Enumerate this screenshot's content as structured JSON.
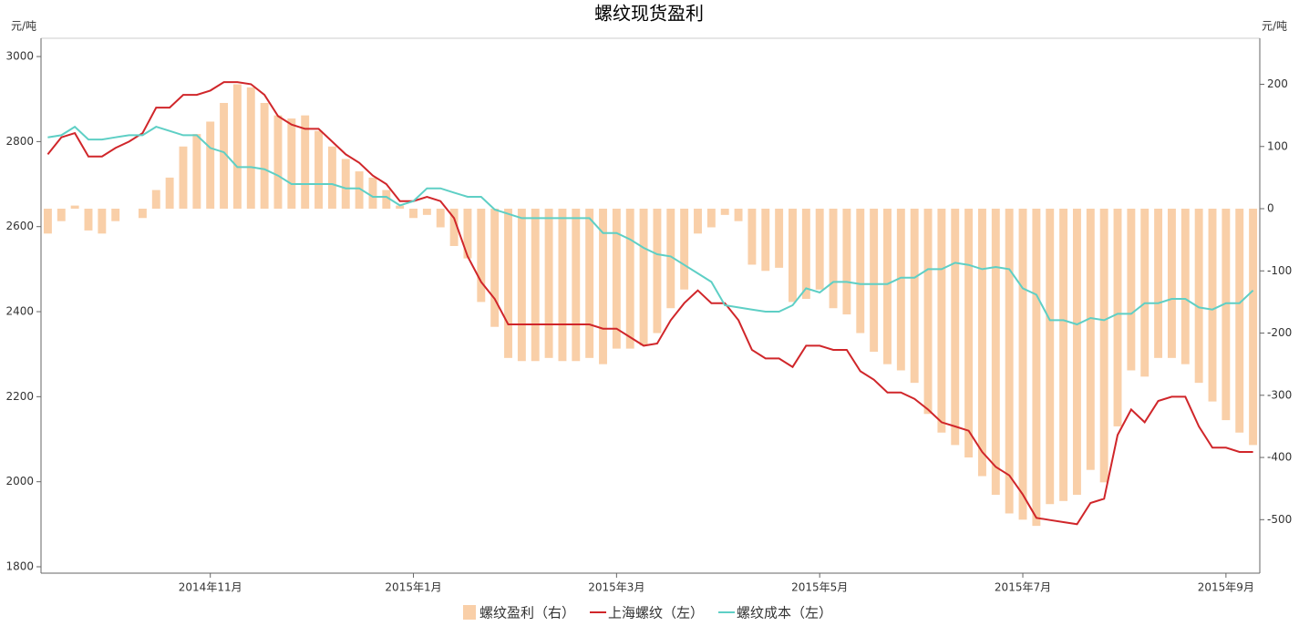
{
  "chart_data": {
    "type": "combo",
    "title": "螺纹现货盈利",
    "ylabel": "元/吨",
    "y2label": "元/吨",
    "categories": [
      null,
      null,
      null,
      null,
      null,
      null,
      null,
      null,
      null,
      null,
      null,
      null,
      "2014年11月",
      null,
      null,
      null,
      null,
      null,
      null,
      null,
      null,
      null,
      null,
      null,
      null,
      null,
      null,
      "2015年1月",
      null,
      null,
      null,
      null,
      null,
      null,
      null,
      null,
      null,
      null,
      null,
      null,
      null,
      null,
      "2015年3月",
      null,
      null,
      null,
      null,
      null,
      null,
      null,
      null,
      null,
      null,
      null,
      null,
      null,
      null,
      "2015年5月",
      null,
      null,
      null,
      null,
      null,
      null,
      null,
      null,
      null,
      null,
      null,
      null,
      null,
      null,
      "2015年7月",
      null,
      null,
      null,
      null,
      null,
      null,
      null,
      null,
      null,
      null,
      null,
      null,
      null,
      null,
      "2015年9月",
      null,
      null
    ],
    "ylim": [
      1785,
      3043
    ],
    "yticks": [
      1800,
      2000,
      2200,
      2400,
      2600,
      2800,
      3000
    ],
    "y2lim": [
      -586,
      274
    ],
    "y2ticks": [
      -500,
      -400,
      -300,
      -200,
      -100,
      0,
      100,
      200
    ],
    "series": [
      {
        "name": "螺纹盈利（右）",
        "type": "bar",
        "axis": "y2",
        "color": "#f9cfa8",
        "values": [
          -40,
          -20,
          5,
          -35,
          -40,
          -20,
          0,
          -15,
          30,
          50,
          100,
          120,
          140,
          170,
          200,
          195,
          170,
          150,
          145,
          150,
          125,
          100,
          80,
          60,
          50,
          30,
          5,
          -15,
          -10,
          -30,
          -60,
          -80,
          -150,
          -190,
          -240,
          -245,
          -245,
          -240,
          -245,
          -245,
          -240,
          -250,
          -225,
          -225,
          -220,
          -200,
          -160,
          -130,
          -40,
          -30,
          -10,
          -20,
          -90,
          -100,
          -95,
          -150,
          -145,
          -130,
          -160,
          -170,
          -200,
          -230,
          -250,
          -260,
          -280,
          -330,
          -360,
          -380,
          -400,
          -430,
          -460,
          -490,
          -500,
          -510,
          -475,
          -470,
          -460,
          -420,
          -440,
          -350,
          -260,
          -270,
          -240,
          -240,
          -250,
          -280,
          -310,
          -340,
          -360,
          -380
        ]
      },
      {
        "name": "上海螺纹（左）",
        "type": "line",
        "color": "#d0262a",
        "values": [
          2770,
          2810,
          2820,
          2765,
          2765,
          2785,
          2800,
          2820,
          2880,
          2880,
          2910,
          2910,
          2920,
          2940,
          2940,
          2935,
          2910,
          2860,
          2840,
          2830,
          2830,
          2800,
          2770,
          2750,
          2720,
          2700,
          2660,
          2660,
          2670,
          2660,
          2620,
          2530,
          2470,
          2430,
          2370,
          2370,
          2370,
          2370,
          2370,
          2370,
          2370,
          2360,
          2360,
          2340,
          2320,
          2325,
          2380,
          2420,
          2450,
          2420,
          2420,
          2380,
          2310,
          2290,
          2290,
          2270,
          2320,
          2320,
          2310,
          2310,
          2260,
          2240,
          2210,
          2210,
          2195,
          2170,
          2140,
          2130,
          2120,
          2070,
          2035,
          2015,
          1970,
          1915,
          1910,
          1905,
          1900,
          1950,
          1960,
          2110,
          2170,
          2140,
          2190,
          2200,
          2200,
          2130,
          2080,
          2080,
          2070,
          2070
        ]
      },
      {
        "name": "螺纹成本（左）",
        "type": "line",
        "color": "#5ecfc5",
        "values": [
          2810,
          2815,
          2835,
          2805,
          2805,
          2810,
          2815,
          2815,
          2835,
          2825,
          2815,
          2815,
          2785,
          2775,
          2740,
          2740,
          2735,
          2720,
          2700,
          2700,
          2700,
          2700,
          2690,
          2690,
          2670,
          2670,
          2650,
          2660,
          2690,
          2690,
          2680,
          2670,
          2670,
          2640,
          2630,
          2620,
          2620,
          2620,
          2620,
          2620,
          2620,
          2585,
          2585,
          2570,
          2550,
          2535,
          2530,
          2510,
          2490,
          2470,
          2415,
          2410,
          2405,
          2400,
          2400,
          2415,
          2455,
          2445,
          2470,
          2470,
          2465,
          2465,
          2465,
          2480,
          2480,
          2500,
          2500,
          2515,
          2510,
          2500,
          2505,
          2500,
          2455,
          2440,
          2380,
          2380,
          2370,
          2385,
          2380,
          2395,
          2395,
          2420,
          2420,
          2430,
          2430,
          2410,
          2405,
          2420,
          2420,
          2450
        ]
      }
    ]
  }
}
